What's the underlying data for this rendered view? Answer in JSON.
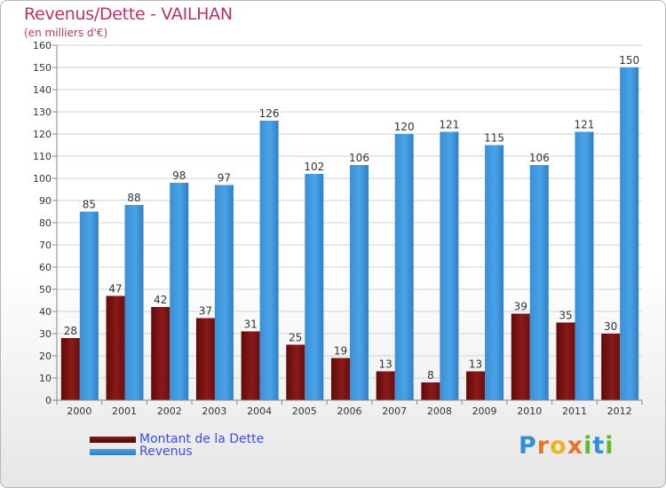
{
  "title": "Revenus/Dette - VAILHAN",
  "subtitle": "(en milliers d'€)",
  "colors": {
    "title": "#b5356b",
    "debt": "#8b1a1a",
    "revenue": "#4aa3e6",
    "legend_text": "#3a4fe0"
  },
  "chart_data": {
    "type": "bar",
    "title": "Revenus/Dette - VAILHAN",
    "ylabel": "(en milliers d'€)",
    "ylim": [
      0,
      160
    ],
    "yticks": [
      0,
      10,
      20,
      30,
      40,
      50,
      60,
      70,
      80,
      90,
      100,
      110,
      120,
      130,
      140,
      150,
      160
    ],
    "grid": true,
    "categories": [
      "2000",
      "2001",
      "2002",
      "2003",
      "2004",
      "2005",
      "2006",
      "2007",
      "2008",
      "2009",
      "2010",
      "2011",
      "2012"
    ],
    "series": [
      {
        "name": "Montant de la Dette",
        "color": "#8b1a1a",
        "values": [
          28,
          47,
          42,
          37,
          31,
          25,
          19,
          13,
          8,
          13,
          39,
          35,
          30
        ]
      },
      {
        "name": "Revenus",
        "color": "#4aa3e6",
        "values": [
          85,
          88,
          98,
          97,
          126,
          102,
          106,
          120,
          121,
          115,
          106,
          121,
          150
        ]
      }
    ],
    "legend_position": "bottom-left"
  },
  "legend": [
    {
      "label": "Montant de la Dette",
      "color": "#8b1a1a"
    },
    {
      "label": "Revenus",
      "color": "#4aa3e6"
    }
  ],
  "logo": {
    "text": "Proxiti",
    "letters": [
      "P",
      "r",
      "o",
      "x",
      "i",
      "t",
      "i"
    ],
    "colors": [
      "#2f8fd8",
      "#e8742a",
      "#f2b01e",
      "#e8742a",
      "#69b82a",
      "#2f8fd8",
      "#69b82a"
    ]
  }
}
